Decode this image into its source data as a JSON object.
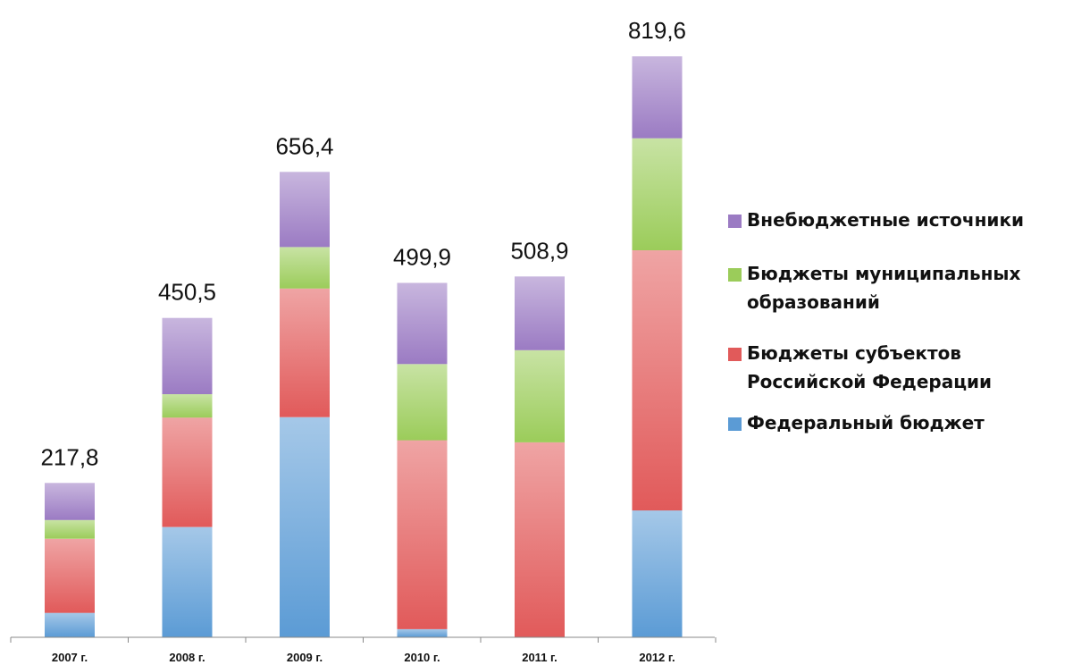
{
  "chart_data": {
    "type": "bar",
    "stacked": true,
    "title": "",
    "xlabel": "",
    "ylabel": "",
    "ylim": [
      0,
      819.6
    ],
    "grid": false,
    "legend_position": "right",
    "categories": [
      "2007 г.",
      "2008 г.",
      "2009 г.",
      "2010 г.",
      "2011 г.",
      "2012 г."
    ],
    "totals": [
      217.8,
      450.5,
      656.4,
      499.9,
      508.9,
      819.6
    ],
    "total_labels": [
      "217,8",
      "450,5",
      "656,4",
      "499,9",
      "508,9",
      "819,6"
    ],
    "series": [
      {
        "name": "Федеральный бюджет",
        "color": "#5b9bd5",
        "values": [
          34.5,
          155.5,
          310.5,
          11.5,
          0,
          179
        ]
      },
      {
        "name": "Бюджеты субъектов Российской Федерации",
        "color": "#e15a5a",
        "values": [
          104.5,
          154.5,
          181.5,
          266.5,
          275,
          367
        ]
      },
      {
        "name": "Бюджеты муниципальных образований",
        "color": "#9bcc5a",
        "values": [
          26.5,
          33,
          58.5,
          107.5,
          130,
          158
        ]
      },
      {
        "name": "Внебюджетные источники",
        "color": "#9b7bc3",
        "values": [
          52.3,
          107.5,
          106,
          114.5,
          104,
          115.6
        ]
      }
    ]
  },
  "legend": {
    "items": [
      {
        "lines": [
          "Внебюджетные источники"
        ],
        "color": "#9b7bc3"
      },
      {
        "lines": [
          "Бюджеты муниципальных",
          "образований"
        ],
        "color": "#9bcc5a"
      },
      {
        "lines": [
          "Бюджеты субъектов",
          "Российской Федерации"
        ],
        "color": "#e15a5a"
      },
      {
        "lines": [
          "Федеральный бюджет"
        ],
        "color": "#5b9bd5"
      }
    ]
  }
}
